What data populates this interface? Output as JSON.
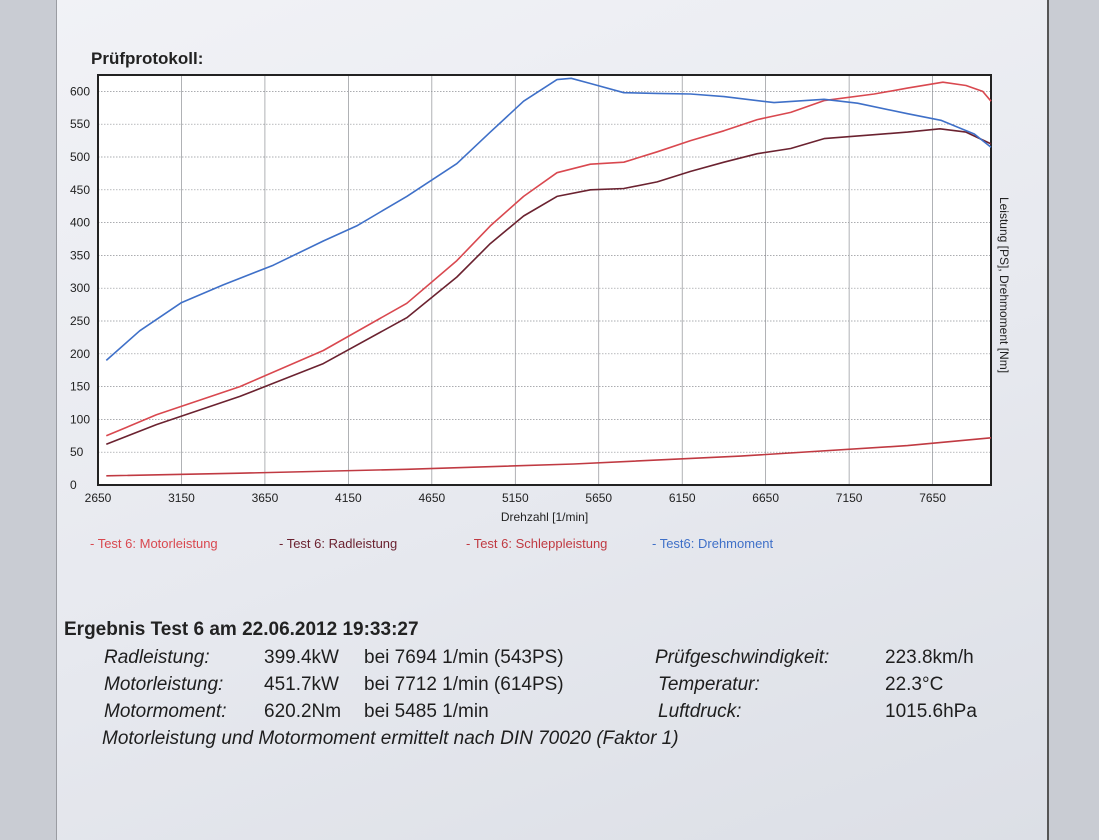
{
  "document": {
    "title": "Prüfprotokoll:"
  },
  "chart_data": {
    "type": "line",
    "xlabel": "Drehzahl [1/min]",
    "ylabel": "Leistung [PS], Drehmoment [Nm]",
    "xlim": [
      2650,
      8000
    ],
    "ylim": [
      0,
      625
    ],
    "x_ticks": [
      2650,
      3150,
      3650,
      4150,
      4650,
      5150,
      5650,
      6150,
      6650,
      7150,
      7650
    ],
    "y_ticks": [
      0,
      50,
      100,
      150,
      200,
      250,
      300,
      350,
      400,
      450,
      500,
      550,
      600
    ],
    "grid": true,
    "legend_position": "bottom",
    "series": [
      {
        "name": "- Test 6: Motorleistung",
        "color": "#d9484f",
        "points": [
          [
            2700,
            75
          ],
          [
            3000,
            107
          ],
          [
            3500,
            150
          ],
          [
            4000,
            205
          ],
          [
            4500,
            277
          ],
          [
            4800,
            342
          ],
          [
            5000,
            395
          ],
          [
            5200,
            440
          ],
          [
            5400,
            476
          ],
          [
            5600,
            489
          ],
          [
            5800,
            492
          ],
          [
            6000,
            508
          ],
          [
            6200,
            525
          ],
          [
            6400,
            540
          ],
          [
            6600,
            557
          ],
          [
            6800,
            568
          ],
          [
            7000,
            586
          ],
          [
            7300,
            596
          ],
          [
            7500,
            605
          ],
          [
            7712,
            614
          ],
          [
            7850,
            609
          ],
          [
            7950,
            600
          ],
          [
            8000,
            585
          ]
        ]
      },
      {
        "name": "- Test 6: Radleistung",
        "color": "#6b2230",
        "points": [
          [
            2700,
            62
          ],
          [
            3000,
            92
          ],
          [
            3500,
            135
          ],
          [
            4000,
            185
          ],
          [
            4500,
            255
          ],
          [
            4800,
            317
          ],
          [
            5000,
            368
          ],
          [
            5200,
            410
          ],
          [
            5400,
            440
          ],
          [
            5600,
            450
          ],
          [
            5800,
            452
          ],
          [
            6000,
            462
          ],
          [
            6200,
            478
          ],
          [
            6400,
            492
          ],
          [
            6600,
            505
          ],
          [
            6800,
            513
          ],
          [
            7000,
            528
          ],
          [
            7300,
            534
          ],
          [
            7500,
            538
          ],
          [
            7694,
            543
          ],
          [
            7850,
            538
          ],
          [
            8000,
            520
          ]
        ]
      },
      {
        "name": "- Test 6: Schleppleistung",
        "color": "#c03a42",
        "points": [
          [
            2700,
            14
          ],
          [
            3500,
            18
          ],
          [
            4500,
            24
          ],
          [
            5500,
            32
          ],
          [
            6500,
            44
          ],
          [
            7500,
            60
          ],
          [
            8000,
            72
          ]
        ]
      },
      {
        "name": "- Test6: Drehmoment",
        "color": "#3f70c8",
        "points": [
          [
            2700,
            190
          ],
          [
            2900,
            235
          ],
          [
            3150,
            278
          ],
          [
            3400,
            305
          ],
          [
            3700,
            335
          ],
          [
            4000,
            372
          ],
          [
            4200,
            395
          ],
          [
            4500,
            440
          ],
          [
            4800,
            490
          ],
          [
            5000,
            538
          ],
          [
            5200,
            585
          ],
          [
            5400,
            618
          ],
          [
            5485,
            620
          ],
          [
            5600,
            612
          ],
          [
            5800,
            598
          ],
          [
            6000,
            597
          ],
          [
            6200,
            596
          ],
          [
            6400,
            592
          ],
          [
            6700,
            583
          ],
          [
            7000,
            588
          ],
          [
            7200,
            582
          ],
          [
            7500,
            566
          ],
          [
            7700,
            556
          ],
          [
            7900,
            535
          ],
          [
            8000,
            515
          ]
        ]
      }
    ]
  },
  "results": {
    "heading": "Ergebnis Test 6 am 22.06.2012 19:33:27",
    "rows": [
      {
        "label": "Radleistung:",
        "value": "399.4kW",
        "at": "bei 7694 1/min (543PS)",
        "label2": "Prüfgeschwindigkeit:",
        "value2": "223.8km/h"
      },
      {
        "label": "Motorleistung:",
        "value": "451.7kW",
        "at": "bei 7712 1/min (614PS)",
        "label2": "Temperatur:",
        "value2": "22.3°C"
      },
      {
        "label": "Motormoment:",
        "value": "620.2Nm",
        "at": "bei 5485 1/min",
        "label2": "Luftdruck:",
        "value2": "1015.6hPa"
      }
    ],
    "note": "Motorleistung und Motormoment ermittelt nach DIN 70020 (Faktor 1)"
  }
}
